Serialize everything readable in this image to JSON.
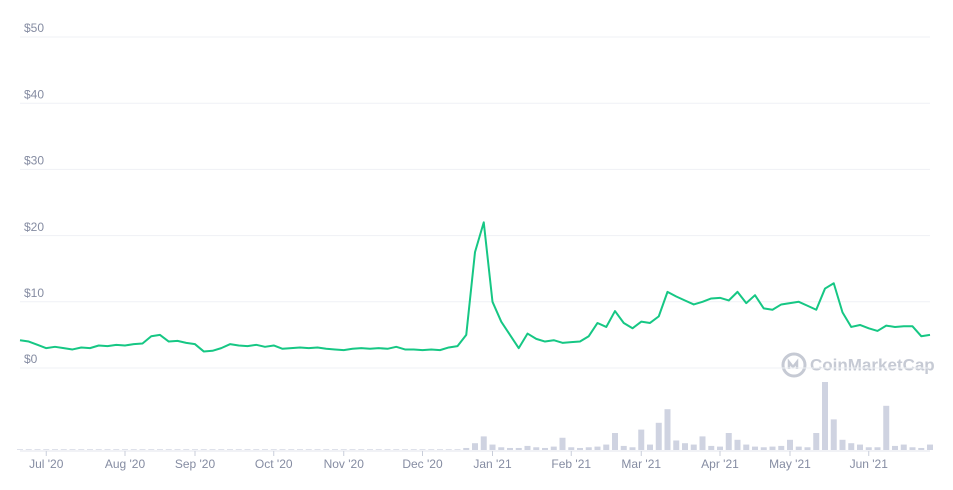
{
  "chart_data": {
    "type": "line",
    "watermark": "CoinMarketCap",
    "categories": [
      null,
      null,
      null,
      "Jul '20",
      null,
      null,
      null,
      null,
      null,
      null,
      null,
      null,
      "Aug '20",
      null,
      null,
      null,
      null,
      null,
      null,
      null,
      "Sep '20",
      null,
      null,
      null,
      null,
      null,
      null,
      null,
      null,
      "Oct '20",
      null,
      null,
      null,
      null,
      null,
      null,
      null,
      "Nov '20",
      null,
      null,
      null,
      null,
      null,
      null,
      null,
      null,
      "Dec '20",
      null,
      null,
      null,
      null,
      null,
      null,
      null,
      "Jan '21",
      null,
      null,
      null,
      null,
      null,
      null,
      null,
      null,
      "Feb '21",
      null,
      null,
      null,
      null,
      null,
      null,
      null,
      "Mar '21",
      null,
      null,
      null,
      null,
      null,
      null,
      null,
      null,
      "Apr '21",
      null,
      null,
      null,
      null,
      null,
      null,
      null,
      "May '21",
      null,
      null,
      null,
      null,
      null,
      null,
      null,
      null,
      "Jun '21",
      null,
      null,
      null,
      null,
      null,
      null,
      null
    ],
    "series": [
      {
        "color": "#16c784",
        "values": [
          4.2,
          4.0,
          3.5,
          3.0,
          3.2,
          3.0,
          2.8,
          3.1,
          3.0,
          3.4,
          3.3,
          3.5,
          3.4,
          3.6,
          3.7,
          4.8,
          5.0,
          4.0,
          4.1,
          3.8,
          3.6,
          2.5,
          2.6,
          3.0,
          3.6,
          3.4,
          3.3,
          3.5,
          3.2,
          3.4,
          2.9,
          3.0,
          3.1,
          3.0,
          3.1,
          2.9,
          2.8,
          2.7,
          2.9,
          3.0,
          2.9,
          3.0,
          2.9,
          3.2,
          2.8,
          2.8,
          2.7,
          2.8,
          2.7,
          3.1,
          3.3,
          5.0,
          17.5,
          22.0,
          10.0,
          7.0,
          5.0,
          3.0,
          5.2,
          4.4,
          4.0,
          4.2,
          3.8,
          3.9,
          4.0,
          4.8,
          6.8,
          6.2,
          8.6,
          6.8,
          6.0,
          7.0,
          6.8,
          7.8,
          11.5,
          10.8,
          10.2,
          9.6,
          10.0,
          10.5,
          10.6,
          10.2,
          11.5,
          9.8,
          11.0,
          9.0,
          8.8,
          9.6,
          9.8,
          10.0,
          9.4,
          8.8,
          12.0,
          12.8,
          8.4,
          6.2,
          6.5,
          6.0,
          5.6,
          6.4,
          6.2,
          6.3,
          6.3,
          4.8,
          5.0
        ]
      },
      {
        "color": "#cfd3e1",
        "axis": "y2",
        "values": [
          1,
          1,
          1,
          1,
          1,
          1,
          1,
          1,
          1,
          1,
          1,
          1,
          1,
          1,
          1,
          1,
          1,
          1,
          1,
          1,
          1,
          1,
          1,
          1,
          1,
          1,
          1,
          1,
          1,
          1,
          1,
          1,
          1,
          1,
          1,
          1,
          1,
          1,
          1,
          1,
          1,
          1,
          1,
          1,
          1,
          1,
          1,
          1,
          1,
          1,
          1,
          3,
          10,
          20,
          8,
          4,
          3,
          3,
          6,
          4,
          3,
          5,
          18,
          4,
          3,
          4,
          5,
          8,
          25,
          6,
          4,
          30,
          8,
          40,
          60,
          14,
          10,
          8,
          20,
          6,
          5,
          25,
          15,
          8,
          5,
          4,
          5,
          6,
          15,
          5,
          4,
          25,
          100,
          45,
          15,
          10,
          8,
          4,
          4,
          65,
          6,
          8,
          4,
          3,
          8
        ]
      }
    ],
    "ylim": [
      0,
      50
    ],
    "yticks": [
      {
        "value": 0,
        "label": "$0"
      },
      {
        "value": 10,
        "label": "$10"
      },
      {
        "value": 20,
        "label": "$20"
      },
      {
        "value": 30,
        "label": "$30"
      },
      {
        "value": 40,
        "label": "$40"
      },
      {
        "value": 50,
        "label": "$50"
      }
    ],
    "y2lim": [
      0,
      100
    ],
    "grid": true
  }
}
